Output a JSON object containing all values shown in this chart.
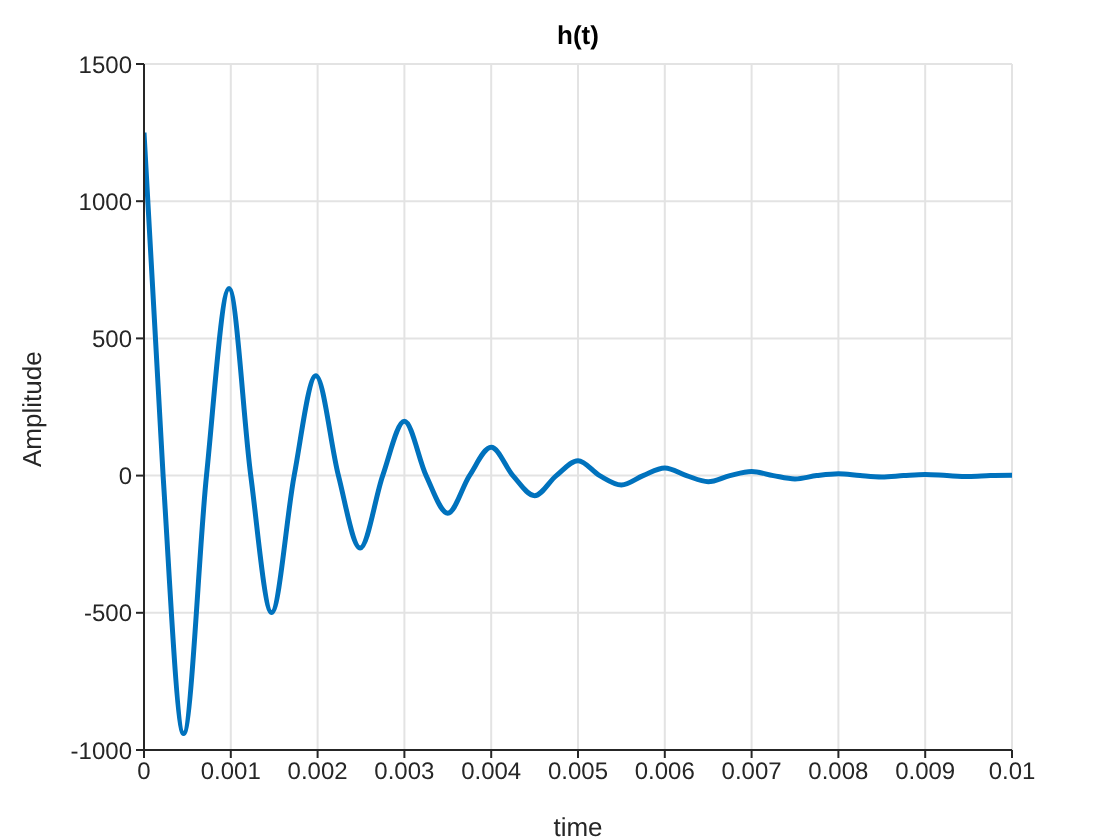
{
  "chart_data": {
    "type": "line",
    "title": "h(t)",
    "xlabel": "time",
    "ylabel": "Amplitude",
    "x": [
      0,
      0.00022,
      0.000456,
      0.00072,
      0.00098,
      0.00123,
      0.00147,
      0.00173,
      0.00198,
      0.00224,
      0.00249,
      0.00275,
      0.003,
      0.00325,
      0.0035,
      0.00375,
      0.004,
      0.00425,
      0.0045,
      0.00475,
      0.005,
      0.00525,
      0.0055,
      0.00575,
      0.006,
      0.00625,
      0.0065,
      0.00675,
      0.007,
      0.00725,
      0.0075,
      0.00775,
      0.008,
      0.00825,
      0.0085,
      0.00875,
      0.009,
      0.00925,
      0.0095,
      0.00975,
      0.01
    ],
    "series": [
      {
        "color": "#0072bd",
        "values": [
          1250,
          0,
          -940,
          0,
          682,
          0,
          -499,
          0,
          364,
          0,
          -264,
          0,
          198,
          0,
          -137,
          0,
          103,
          0,
          -73,
          0,
          54,
          0,
          -34,
          0,
          28,
          0,
          -22,
          0,
          15,
          0,
          -12,
          0,
          7,
          0,
          -5,
          0,
          4,
          0,
          -3,
          0,
          1
        ]
      }
    ],
    "xlim": [
      0,
      0.01
    ],
    "xticks": [
      0,
      0.001,
      0.002,
      0.003,
      0.004,
      0.005,
      0.006,
      0.007,
      0.008,
      0.009,
      0.01
    ],
    "ylim": [
      -1000,
      1500
    ],
    "yticks": [
      -1000,
      -500,
      0,
      500,
      1000,
      1500
    ],
    "grid": true,
    "marker": "none",
    "line_style": "solid"
  }
}
